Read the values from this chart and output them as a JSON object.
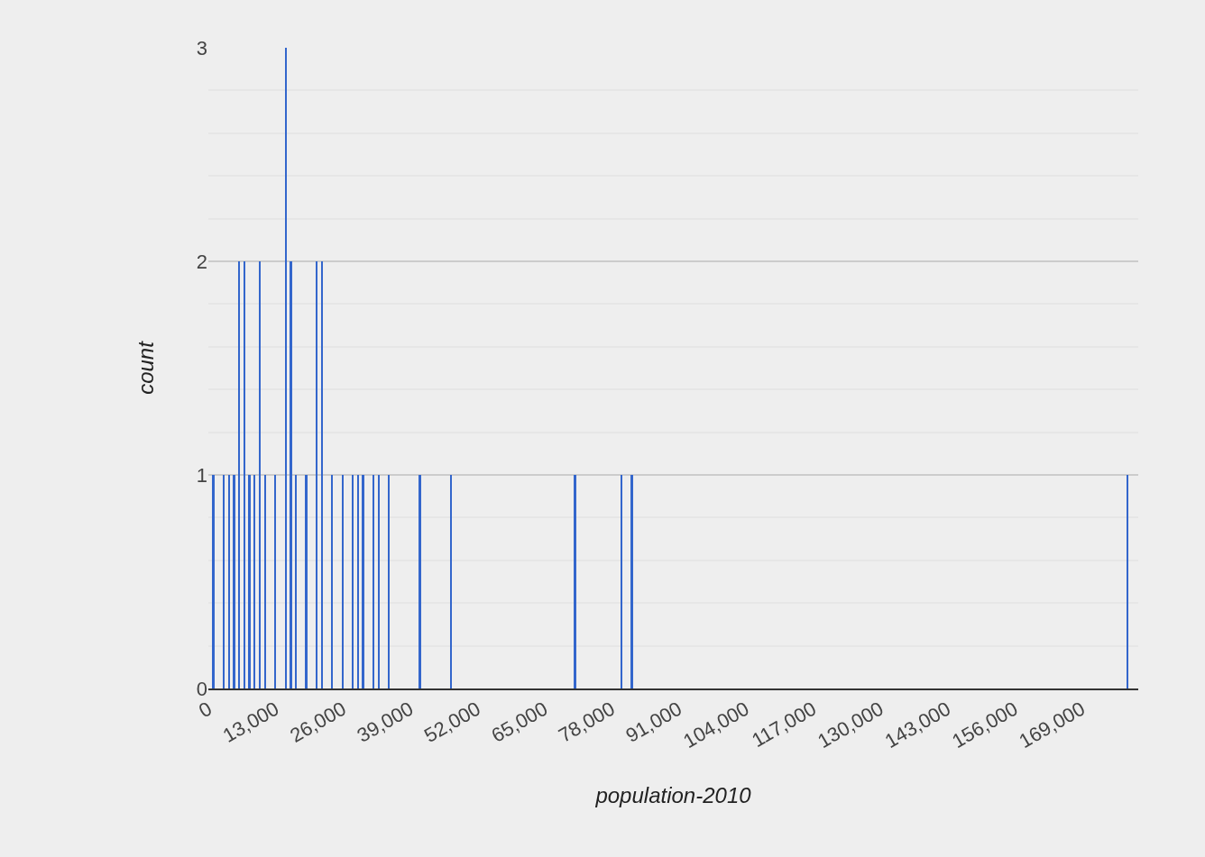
{
  "chart_data": {
    "type": "histogram",
    "xlabel": "population-2010",
    "ylabel": "count",
    "color": "#3366cc",
    "bins": [
      500,
      1500,
      2500,
      3500,
      4500,
      5500,
      6500,
      7500,
      8500,
      9500,
      10500,
      11500,
      12500,
      13500,
      14500,
      15500,
      16500,
      17500,
      18500,
      19500,
      20500,
      21500,
      22500,
      23500,
      24500,
      25500,
      26500,
      27500,
      28500,
      29500,
      30500,
      31500,
      32500,
      33500,
      34500,
      35500,
      40500,
      41500,
      46500,
      47500,
      70500,
      71500,
      79500,
      80500,
      81500,
      82500,
      177500,
      178500
    ],
    "values": [
      1,
      0,
      1,
      1,
      1,
      2,
      2,
      1,
      1,
      2,
      1,
      0,
      1,
      0,
      3,
      2,
      1,
      0,
      1,
      0,
      2,
      2,
      0,
      1,
      0,
      1,
      0,
      1,
      1,
      1,
      0,
      1,
      1,
      0,
      1,
      0,
      1,
      0,
      1,
      0,
      1,
      0,
      1,
      0,
      1,
      0,
      1
    ],
    "xlim": [
      0,
      180000
    ],
    "xticks": [
      {
        "value": 0,
        "label": "0"
      },
      {
        "value": 13000,
        "label": "13,000"
      },
      {
        "value": 26000,
        "label": "26,000"
      },
      {
        "value": 39000,
        "label": "39,000"
      },
      {
        "value": 52000,
        "label": "52,000"
      },
      {
        "value": 65000,
        "label": "65,000"
      },
      {
        "value": 78000,
        "label": "78,000"
      },
      {
        "value": 91000,
        "label": "91,000"
      },
      {
        "value": 104000,
        "label": "104,000"
      },
      {
        "value": 117000,
        "label": "117,000"
      },
      {
        "value": 130000,
        "label": "130,000"
      },
      {
        "value": 143000,
        "label": "143,000"
      },
      {
        "value": 156000,
        "label": "156,000"
      },
      {
        "value": 169000,
        "label": "169,000"
      }
    ],
    "ylim": [
      0,
      3
    ],
    "yticks": [
      0,
      1,
      2,
      3
    ],
    "grid": "y"
  }
}
